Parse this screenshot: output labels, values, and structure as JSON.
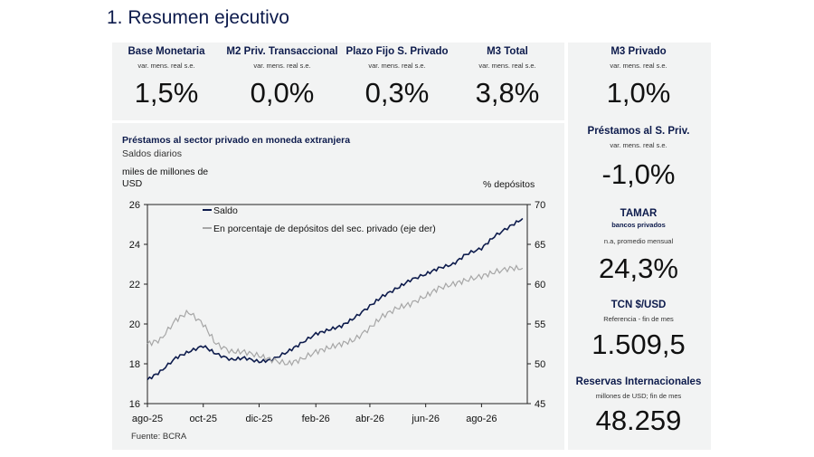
{
  "page_title": "1. Resumen ejecutivo",
  "kpis_top": [
    {
      "label": "Base Monetaria",
      "sub": "var. mens. real s.e.",
      "value": "1,5%"
    },
    {
      "label": "M2 Priv. Transaccional",
      "sub": "var. mens. real s.e.",
      "value": "0,0%"
    },
    {
      "label": "Plazo Fijo S. Privado",
      "sub": "var. mens. real s.e.",
      "value": "0,3%"
    },
    {
      "label": "M3 Total",
      "sub": "var. mens. real s.e.",
      "value": "3,8%"
    },
    {
      "label": "M3 Privado",
      "sub": "var. mens. real s.e.",
      "value": "1,0%"
    }
  ],
  "kpis_side": [
    {
      "label": "Préstamos al S. Priv.",
      "label2": "",
      "sub": "var. mens. real s.e.",
      "value": "-1,0%"
    },
    {
      "label": "TAMAR",
      "label2": "bancos privados",
      "sub": "n.a, promedio mensual",
      "value": "24,3%"
    },
    {
      "label": "TCN $/USD",
      "label2": "",
      "sub": "Referencia - fin de mes",
      "value": "1.509,5"
    },
    {
      "label": "Reservas Internacionales",
      "label2": "",
      "sub": "millones de USD; fin de mes",
      "value": "48.259"
    }
  ],
  "source": "Fuente: BCRA",
  "colors": {
    "navy": "#0d1b4c",
    "gray_series": "#a6a6a6",
    "panel_bg": "#f2f3f3"
  },
  "chart_data": {
    "type": "line",
    "title": "Préstamos al sector privado en moneda extranjera",
    "subtitle": "Saldos diarios",
    "ylabel_left": "miles de millones de USD",
    "ylabel_right": "% depósitos",
    "ylim_left": [
      16,
      26
    ],
    "ylim_right": [
      45,
      70
    ],
    "yticks_left": [
      "16",
      "18",
      "20",
      "22",
      "24",
      "26"
    ],
    "yticks_right": [
      "45",
      "50",
      "55",
      "60",
      "65",
      "70"
    ],
    "xticks": [
      "ago-25",
      "oct-25",
      "dic-25",
      "feb-26",
      "abr-26",
      "jun-26",
      "ago-26"
    ],
    "grid": false,
    "legend_position": "top-left",
    "series": [
      {
        "name": "Saldo",
        "axis": "left",
        "color": "#0d1b4c",
        "x": [
          "2025-08-01",
          "2025-08-15",
          "2025-09-01",
          "2025-09-15",
          "2025-10-01",
          "2025-10-15",
          "2025-11-01",
          "2025-11-15",
          "2025-12-01",
          "2025-12-15",
          "2026-01-01",
          "2026-01-15",
          "2026-02-01",
          "2026-02-15",
          "2026-03-01",
          "2026-03-15",
          "2026-04-01",
          "2026-04-15",
          "2026-05-01",
          "2026-05-15",
          "2026-06-01",
          "2026-06-15",
          "2026-07-01",
          "2026-07-15",
          "2026-08-01",
          "2026-08-15",
          "2026-09-01",
          "2026-09-15"
        ],
        "values": [
          17.2,
          17.6,
          18.3,
          18.6,
          18.9,
          18.5,
          18.2,
          18.3,
          18.1,
          18.2,
          18.6,
          19.0,
          19.5,
          19.7,
          19.9,
          20.3,
          20.9,
          21.4,
          21.8,
          22.2,
          22.5,
          22.8,
          23.0,
          23.5,
          23.8,
          24.4,
          24.9,
          25.3
        ]
      },
      {
        "name": "En porcentaje de depósitos del sec. privado (eje der)",
        "axis": "right",
        "color": "#a6a6a6",
        "x": [
          "2025-08-01",
          "2025-08-15",
          "2025-09-01",
          "2025-09-15",
          "2025-10-01",
          "2025-10-15",
          "2025-11-01",
          "2025-11-15",
          "2025-12-01",
          "2025-12-15",
          "2026-01-01",
          "2026-01-15",
          "2026-02-01",
          "2026-02-15",
          "2026-03-01",
          "2026-03-15",
          "2026-04-01",
          "2026-04-15",
          "2026-05-01",
          "2026-05-15",
          "2026-06-01",
          "2026-06-15",
          "2026-07-01",
          "2026-07-15",
          "2026-08-01",
          "2026-08-15",
          "2026-09-01",
          "2026-09-15"
        ],
        "values": [
          52.5,
          53.0,
          55.5,
          56.5,
          55.0,
          52.5,
          51.5,
          51.5,
          51.0,
          50.5,
          50.0,
          50.5,
          51.5,
          52.0,
          52.5,
          53.0,
          54.5,
          56.0,
          57.0,
          57.5,
          58.5,
          59.5,
          60.0,
          60.5,
          61.0,
          61.5,
          62.0,
          62.0
        ]
      }
    ]
  }
}
